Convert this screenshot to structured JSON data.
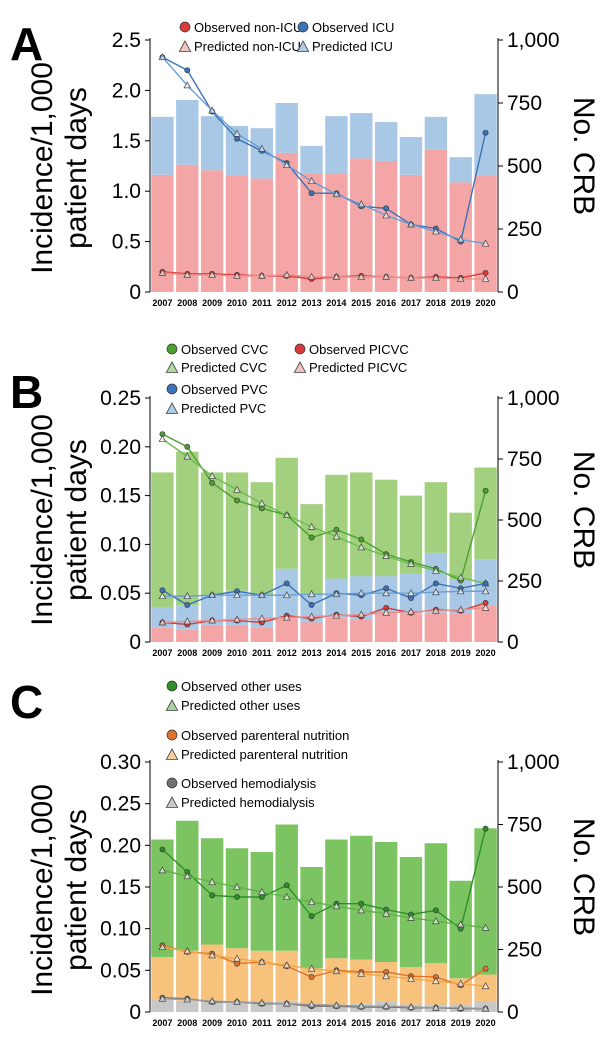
{
  "chart_data": [
    {
      "panel": "A",
      "type": "bar",
      "x": [
        "2007",
        "2008",
        "2009",
        "2010",
        "2011",
        "2012",
        "2013",
        "2014",
        "2015",
        "2016",
        "2017",
        "2018",
        "2019",
        "2020"
      ],
      "ylabel": [
        "Incidence/1,000",
        "patient days"
      ],
      "y2label": "No. CRB",
      "ylim": [
        0,
        2.5
      ],
      "yticks": [
        "0",
        "0.5",
        "1.0",
        "1.5",
        "2.0",
        "2.5"
      ],
      "y2lim": [
        0,
        1000
      ],
      "y2ticks": [
        "0",
        "250",
        "500",
        "750",
        "1,000"
      ],
      "legend": [
        "Observed non-ICU",
        "Observed ICU",
        "Predicted non-ICU",
        "Predicted ICU"
      ],
      "bars": [
        {
          "name": "non-ICU",
          "color": "#f4a6a6",
          "values": [
            465,
            505,
            483,
            462,
            450,
            552,
            470,
            468,
            530,
            520,
            465,
            565,
            435,
            460
          ]
        },
        {
          "name": "ICU",
          "color": "#a9c8e6",
          "values": [
            230,
            257,
            215,
            197,
            200,
            198,
            110,
            230,
            180,
            155,
            150,
            130,
            100,
            325
          ]
        }
      ],
      "lines": [
        {
          "name": "Observed non-ICU",
          "kind": "observed",
          "color": "#d93a3a",
          "values": [
            0.2,
            0.18,
            0.18,
            0.17,
            0.16,
            0.16,
            0.13,
            0.15,
            0.16,
            0.15,
            0.14,
            0.15,
            0.14,
            0.19
          ]
        },
        {
          "name": "Predicted non-ICU",
          "kind": "predicted",
          "color": "#e8908f",
          "values": [
            0.19,
            0.17,
            0.17,
            0.16,
            0.16,
            0.17,
            0.15,
            0.15,
            0.15,
            0.15,
            0.14,
            0.14,
            0.13,
            0.13
          ]
        },
        {
          "name": "Observed ICU",
          "kind": "observed",
          "color": "#3b73b8",
          "values": [
            2.33,
            2.2,
            1.79,
            1.52,
            1.4,
            1.28,
            0.98,
            0.98,
            0.85,
            0.83,
            0.67,
            0.63,
            0.5,
            1.58
          ]
        },
        {
          "name": "Predicted ICU",
          "kind": "predicted",
          "color": "#6a9ed4",
          "values": [
            2.33,
            2.05,
            1.8,
            1.57,
            1.42,
            1.26,
            1.1,
            0.97,
            0.87,
            0.76,
            0.67,
            0.6,
            0.52,
            0.48
          ]
        }
      ]
    },
    {
      "panel": "B",
      "type": "bar",
      "x": [
        "2007",
        "2008",
        "2009",
        "2010",
        "2011",
        "2012",
        "2013",
        "2014",
        "2015",
        "2016",
        "2017",
        "2018",
        "2019",
        "2020"
      ],
      "ylabel": [
        "Incidence/1,000",
        "patient days"
      ],
      "y2label": "No. CRB",
      "ylim": [
        0,
        0.25
      ],
      "yticks": [
        "0",
        "0.05",
        "0.10",
        "0.15",
        "0.20",
        "0.25"
      ],
      "y2lim": [
        0,
        1000
      ],
      "y2ticks": [
        "0",
        "250",
        "500",
        "750",
        "1,000"
      ],
      "legend": [
        "Observed CVC",
        "Observed PICVC",
        "Predicted CVC",
        "Predicted PICVC",
        "Observed PVC",
        "Predicted PVC"
      ],
      "bars": [
        {
          "name": "PICVC",
          "color": "#f4a6a6",
          "values": [
            60,
            50,
            70,
            70,
            60,
            100,
            80,
            100,
            90,
            120,
            115,
            120,
            115,
            150
          ]
        },
        {
          "name": "PVC",
          "color": "#a9c8e6",
          "values": [
            80,
            100,
            120,
            140,
            130,
            200,
            110,
            160,
            180,
            150,
            165,
            245,
            140,
            190
          ]
        },
        {
          "name": "CVC",
          "color": "#a3d07f",
          "values": [
            555,
            630,
            505,
            485,
            465,
            455,
            375,
            425,
            425,
            395,
            320,
            290,
            275,
            375
          ]
        }
      ],
      "lines": [
        {
          "name": "Observed CVC",
          "kind": "observed",
          "color": "#4aa12e",
          "values": [
            0.213,
            0.2,
            0.163,
            0.145,
            0.137,
            0.13,
            0.107,
            0.115,
            0.105,
            0.09,
            0.082,
            0.075,
            0.063,
            0.155
          ]
        },
        {
          "name": "Predicted CVC",
          "kind": "predicted",
          "color": "#6cbc4e",
          "values": [
            0.208,
            0.19,
            0.17,
            0.156,
            0.142,
            0.13,
            0.118,
            0.108,
            0.097,
            0.088,
            0.08,
            0.073,
            0.066,
            0.06
          ]
        },
        {
          "name": "Observed PVC",
          "kind": "observed",
          "color": "#3b73b8",
          "values": [
            0.053,
            0.038,
            0.048,
            0.052,
            0.048,
            0.06,
            0.038,
            0.05,
            0.048,
            0.055,
            0.045,
            0.06,
            0.055,
            0.06
          ]
        },
        {
          "name": "Predicted PVC",
          "kind": "predicted",
          "color": "#6a9ed4",
          "values": [
            0.047,
            0.047,
            0.048,
            0.048,
            0.048,
            0.048,
            0.049,
            0.049,
            0.05,
            0.05,
            0.05,
            0.051,
            0.052,
            0.052
          ]
        },
        {
          "name": "Observed PICVC",
          "kind": "observed",
          "color": "#d93a3a",
          "values": [
            0.02,
            0.018,
            0.022,
            0.022,
            0.02,
            0.027,
            0.024,
            0.028,
            0.026,
            0.035,
            0.03,
            0.033,
            0.032,
            0.04
          ]
        },
        {
          "name": "Predicted PICVC",
          "kind": "predicted",
          "color": "#e8908f",
          "values": [
            0.02,
            0.021,
            0.022,
            0.023,
            0.024,
            0.025,
            0.026,
            0.027,
            0.028,
            0.03,
            0.031,
            0.032,
            0.033,
            0.035
          ]
        }
      ]
    },
    {
      "panel": "C",
      "type": "bar",
      "x": [
        "2007",
        "2008",
        "2009",
        "2010",
        "2011",
        "2012",
        "2013",
        "2014",
        "2015",
        "2016",
        "2017",
        "2018",
        "2019",
        "2020"
      ],
      "ylabel": [
        "Incidence/1,000",
        "patient days"
      ],
      "y2label": "No. CRB",
      "ylim": [
        0,
        0.3
      ],
      "yticks": [
        "0",
        "0.05",
        "0.10",
        "0.15",
        "0.20",
        "0.25",
        "0.30"
      ],
      "y2lim": [
        0,
        1000
      ],
      "y2ticks": [
        "0",
        "250",
        "500",
        "750",
        "1,000"
      ],
      "legend": [
        "Observed other uses",
        "Predicted other uses",
        "Observed parenteral nutrition",
        "Predicted parenteral nutrition",
        "Observed hemodialysis",
        "Predicted hemodialysis"
      ],
      "bars": [
        {
          "name": "hemodialysis",
          "color": "#c8c8c8",
          "values": [
            50,
            45,
            40,
            40,
            40,
            45,
            35,
            30,
            35,
            40,
            30,
            30,
            30,
            40
          ]
        },
        {
          "name": "parenteral nutrition",
          "color": "#f6c27c",
          "values": [
            170,
            200,
            230,
            215,
            205,
            200,
            140,
            185,
            175,
            160,
            150,
            165,
            105,
            110
          ]
        },
        {
          "name": "other uses",
          "color": "#7cc462",
          "values": [
            470,
            520,
            425,
            400,
            395,
            505,
            405,
            475,
            495,
            480,
            440,
            480,
            390,
            585
          ]
        }
      ],
      "lines": [
        {
          "name": "Observed other uses",
          "kind": "observed",
          "color": "#2e8f2a",
          "values": [
            0.195,
            0.168,
            0.14,
            0.138,
            0.138,
            0.152,
            0.115,
            0.13,
            0.13,
            0.123,
            0.117,
            0.122,
            0.1,
            0.22
          ]
        },
        {
          "name": "Predicted other uses",
          "kind": "predicted",
          "color": "#5fb04a",
          "values": [
            0.17,
            0.163,
            0.156,
            0.15,
            0.144,
            0.138,
            0.132,
            0.127,
            0.122,
            0.118,
            0.113,
            0.109,
            0.105,
            0.101
          ]
        },
        {
          "name": "Observed parenteral nutrition",
          "kind": "observed",
          "color": "#e0742a",
          "values": [
            0.08,
            0.072,
            0.07,
            0.058,
            0.06,
            0.055,
            0.042,
            0.05,
            0.048,
            0.048,
            0.043,
            0.042,
            0.032,
            0.052
          ]
        },
        {
          "name": "Predicted parenteral nutrition",
          "kind": "predicted",
          "color": "#f2a548",
          "values": [
            0.078,
            0.073,
            0.068,
            0.064,
            0.06,
            0.056,
            0.052,
            0.049,
            0.046,
            0.043,
            0.04,
            0.037,
            0.034,
            0.031
          ]
        },
        {
          "name": "Observed hemodialysis",
          "kind": "observed",
          "color": "#707070",
          "values": [
            0.017,
            0.016,
            0.012,
            0.012,
            0.01,
            0.01,
            0.007,
            0.007,
            0.006,
            0.006,
            0.005,
            0.005,
            0.004,
            0.004
          ]
        },
        {
          "name": "Predicted hemodialysis",
          "kind": "predicted",
          "color": "#9a9a9a",
          "values": [
            0.016,
            0.015,
            0.013,
            0.012,
            0.011,
            0.01,
            0.009,
            0.008,
            0.007,
            0.007,
            0.006,
            0.005,
            0.005,
            0.004
          ]
        }
      ]
    }
  ]
}
